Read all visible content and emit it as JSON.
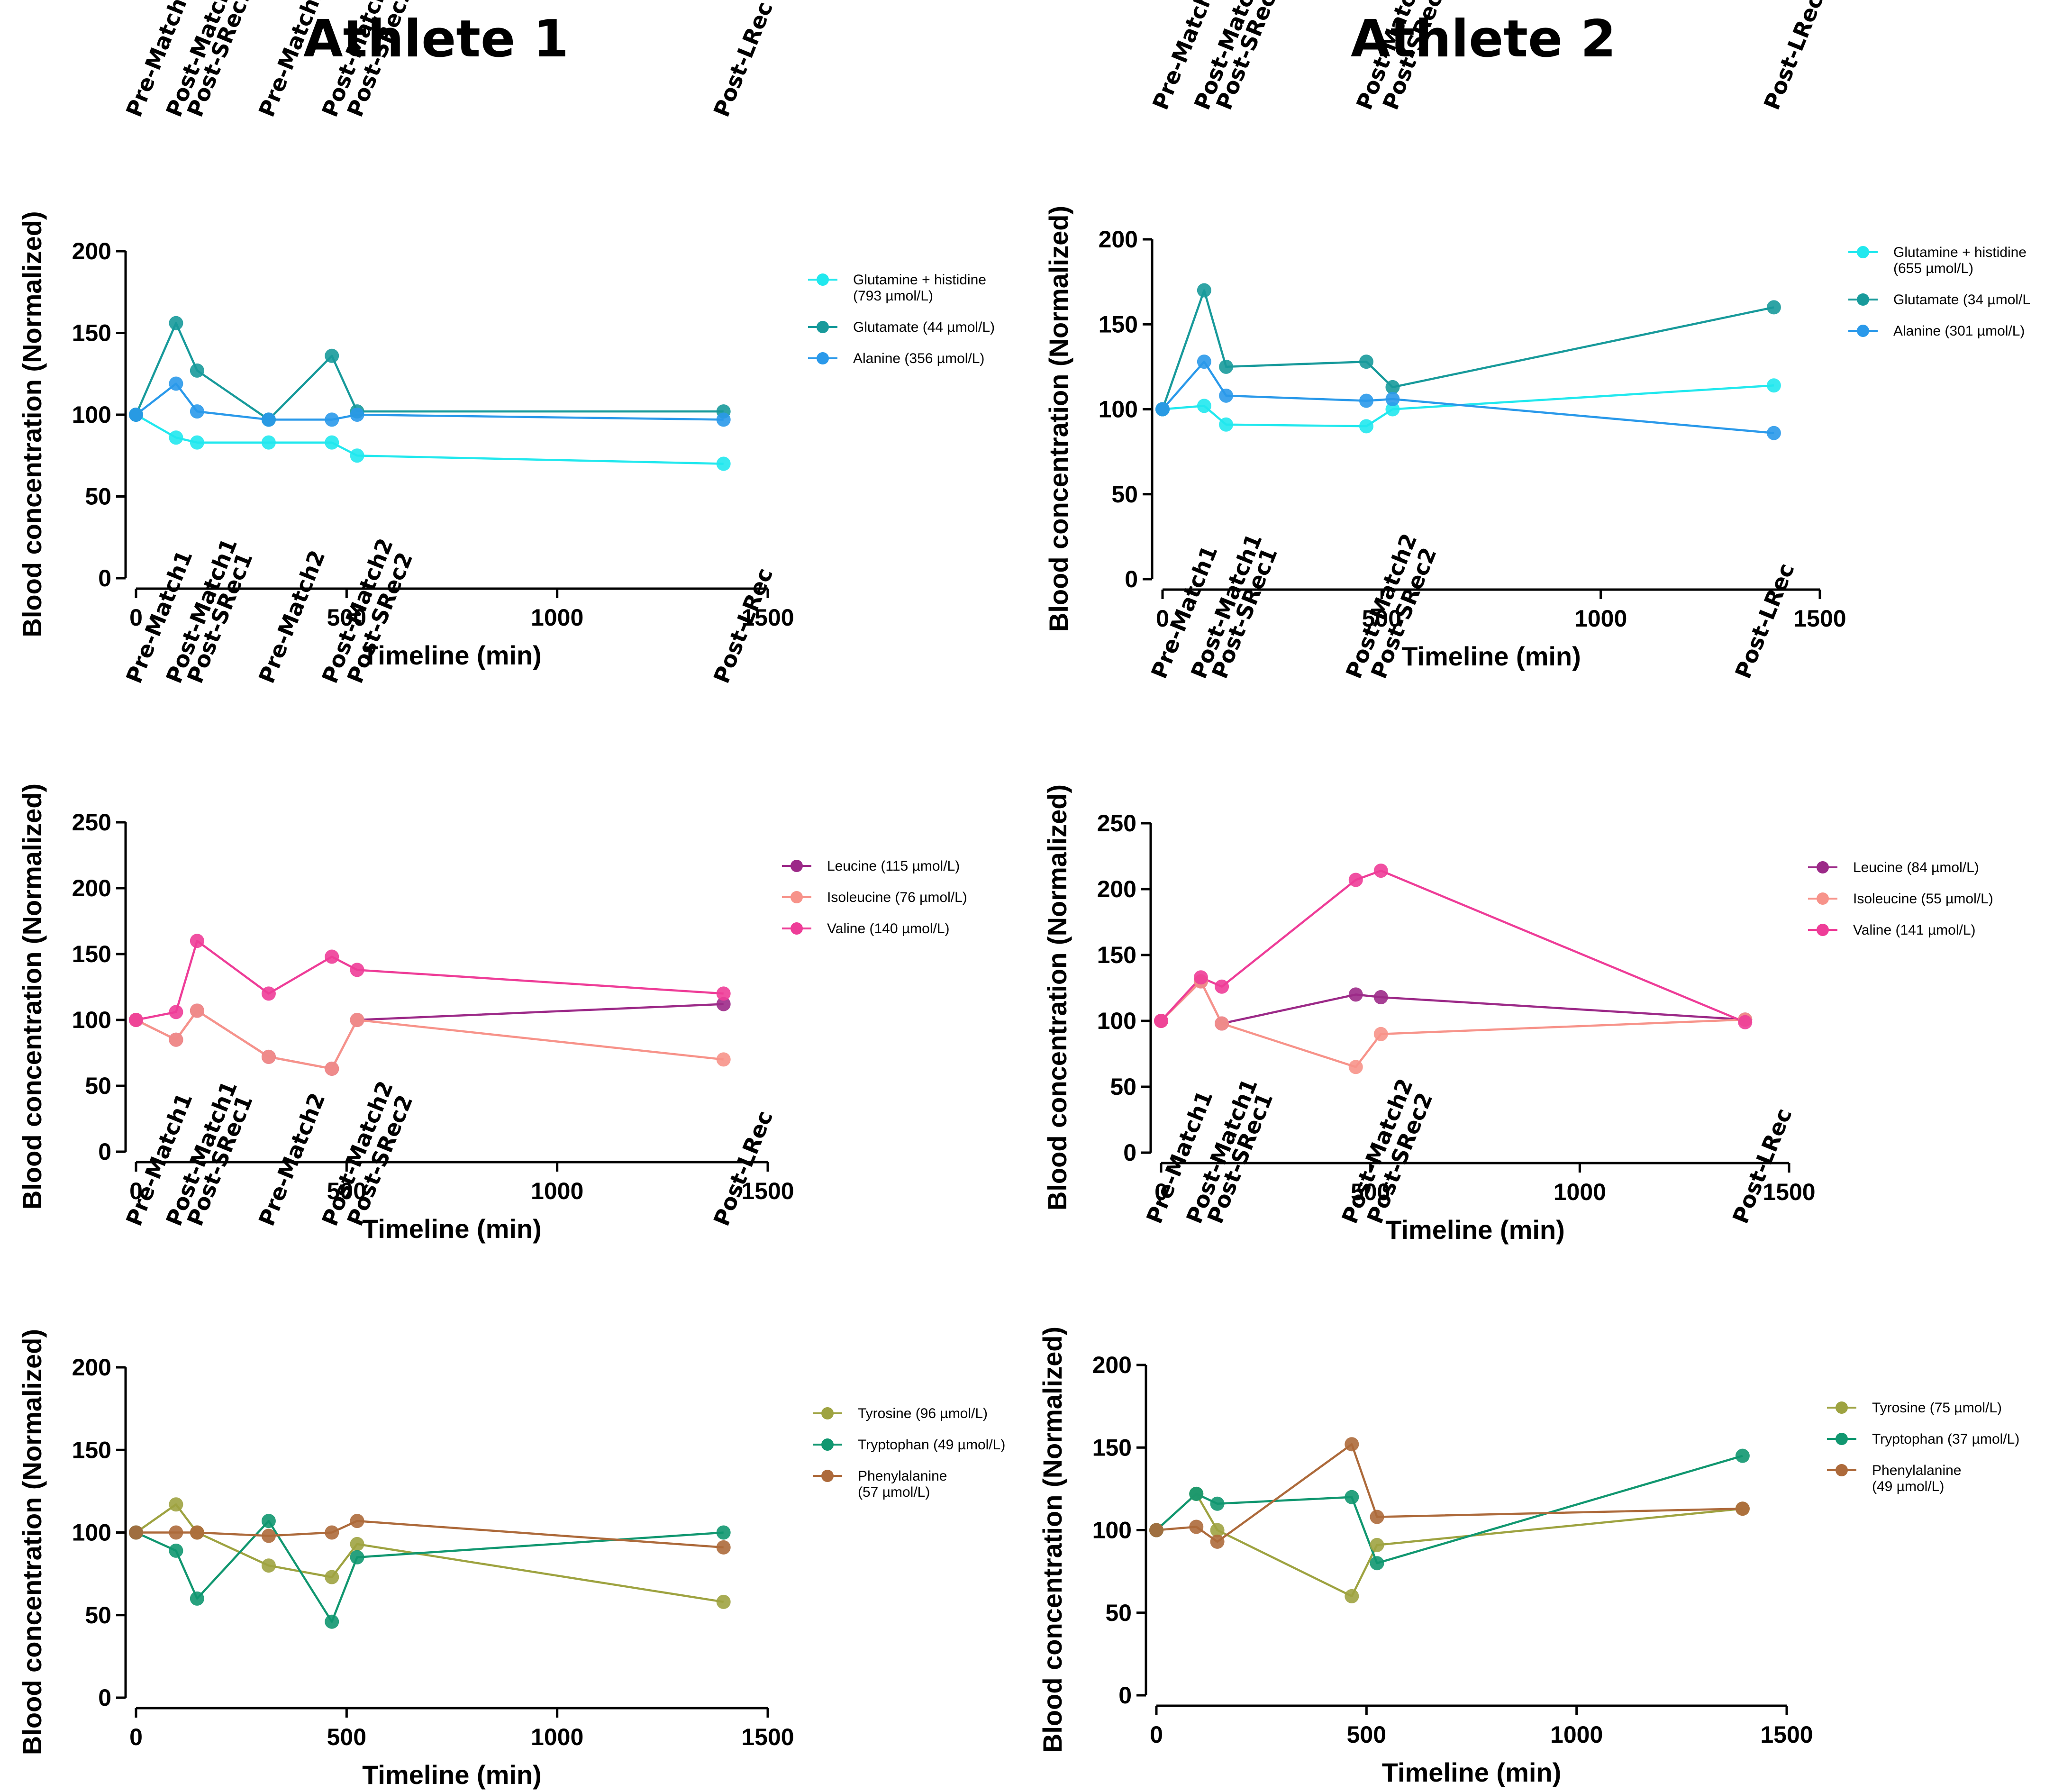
{
  "titles": {
    "athlete1": "Athlete 1",
    "athlete2": "Athlete 2"
  },
  "ylabel": "Blood concentration (Normalized)",
  "xlabel": "Timeline (min)",
  "colors": {
    "glutamine_histidine": "#21e8ee",
    "glutamate": "#189a9b",
    "alanine": "#2a99ea",
    "leucine": "#9c2a88",
    "isoleucine": "#f7938a",
    "valine": "#ee3d98",
    "tyrosine": "#9ea341",
    "tryptophan": "#119770",
    "phenylalanine": "#ad6a3b",
    "axis": "#000000"
  },
  "chart_data": [
    {
      "id": "a1-c1",
      "type": "line",
      "athlete": "Athlete 1",
      "xlabel": "Timeline (min)",
      "ylabel": "Blood concentration (Normalized)",
      "xlim": [
        0,
        1500
      ],
      "ylim": [
        0,
        200
      ],
      "xticks": [
        0,
        500,
        1000,
        1500
      ],
      "yticks": [
        0,
        50,
        100,
        150,
        200
      ],
      "timepoints": [
        {
          "label": "Pre-Match1",
          "x": 0
        },
        {
          "label": "Post-Match1",
          "x": 95
        },
        {
          "label": "Post-SRec1",
          "x": 145
        },
        {
          "label": "Pre-Match2",
          "x": 315
        },
        {
          "label": "Post-Match2",
          "x": 465
        },
        {
          "label": "Post-SRec2",
          "x": 525
        },
        {
          "label": "Post-LRec",
          "x": 1395
        }
      ],
      "series": [
        {
          "name": "Glutamine + histidine (793 µmol/L)",
          "legend_lines": [
            "Glutamine + histidine",
            "(793 µmol/L)"
          ],
          "color_key": "glutamine_histidine",
          "x": [
            0,
            95,
            145,
            315,
            465,
            525,
            1395
          ],
          "y": [
            100,
            86,
            83,
            83,
            83,
            75,
            70
          ]
        },
        {
          "name": "Glutamate (44 µmol/L)",
          "legend_lines": [
            "Glutamate (44 µmol/L)"
          ],
          "color_key": "glutamate",
          "x": [
            0,
            95,
            145,
            315,
            465,
            525,
            1395
          ],
          "y": [
            100,
            156,
            127,
            97,
            136,
            102,
            102
          ]
        },
        {
          "name": "Alanine (356 µmol/L)",
          "legend_lines": [
            "Alanine (356 µmol/L)"
          ],
          "color_key": "alanine",
          "x": [
            0,
            95,
            145,
            315,
            465,
            525,
            1395
          ],
          "y": [
            100,
            119,
            102,
            97,
            97,
            100,
            97
          ]
        }
      ]
    },
    {
      "id": "a2-c1",
      "type": "line",
      "athlete": "Athlete 2",
      "xlabel": "Timeline (min)",
      "ylabel": "Blood concentration (Normalized)",
      "xlim": [
        0,
        1500
      ],
      "ylim": [
        0,
        200
      ],
      "xticks": [
        0,
        500,
        1000,
        1500
      ],
      "yticks": [
        0,
        50,
        100,
        150,
        200
      ],
      "timepoints": [
        {
          "label": "Pre-Match1",
          "x": 0
        },
        {
          "label": "Post-Match1",
          "x": 95
        },
        {
          "label": "Post-SRec1",
          "x": 145
        },
        {
          "label": "Post-Match2",
          "x": 465
        },
        {
          "label": "Post-SRec2",
          "x": 525
        },
        {
          "label": "Post-LRec",
          "x": 1395
        }
      ],
      "series": [
        {
          "name": "Glutamine + histidine (655 µmol/L)",
          "legend_lines": [
            "Glutamine + histidine",
            "(655 µmol/L)"
          ],
          "color_key": "glutamine_histidine",
          "x": [
            0,
            95,
            145,
            465,
            525,
            1395
          ],
          "y": [
            100,
            102,
            91,
            90,
            100,
            114
          ]
        },
        {
          "name": "Glutamate (34 µmol/L)",
          "legend_lines": [
            "Glutamate (34 µmol/L"
          ],
          "color_key": "glutamate",
          "x": [
            0,
            95,
            145,
            465,
            525,
            1395
          ],
          "y": [
            100,
            170,
            125,
            128,
            113,
            160
          ]
        },
        {
          "name": "Alanine (301 µmol/L)",
          "legend_lines": [
            "Alanine (301 µmol/L)"
          ],
          "color_key": "alanine",
          "x": [
            0,
            95,
            145,
            465,
            525,
            1395
          ],
          "y": [
            100,
            128,
            108,
            105,
            106,
            86
          ]
        }
      ]
    },
    {
      "id": "a1-c2",
      "type": "line",
      "athlete": "Athlete 1",
      "xlabel": "Timeline (min)",
      "ylabel": "Blood concentration (Normalized)",
      "xlim": [
        0,
        1500
      ],
      "ylim": [
        0,
        250
      ],
      "xticks": [
        0,
        500,
        1000,
        1500
      ],
      "yticks": [
        0,
        50,
        100,
        150,
        200,
        250
      ],
      "timepoints": [
        {
          "label": "Pre-Match1",
          "x": 0
        },
        {
          "label": "Post-Match1",
          "x": 95
        },
        {
          "label": "Post-SRec1",
          "x": 145
        },
        {
          "label": "Pre-Match2",
          "x": 315
        },
        {
          "label": "Post-Match2",
          "x": 465
        },
        {
          "label": "Post-SRec2",
          "x": 525
        },
        {
          "label": "Post-LRec",
          "x": 1395
        }
      ],
      "series": [
        {
          "name": "Leucine (115 µmol/L)",
          "legend_lines": [
            "Leucine (115 µmol/L)"
          ],
          "color_key": "leucine",
          "x": [
            0,
            95,
            145,
            315,
            465,
            525,
            1395
          ],
          "y": [
            100,
            85,
            107,
            72,
            63,
            100,
            112
          ]
        },
        {
          "name": "Isoleucine (76 µmol/L)",
          "legend_lines": [
            "Isoleucine (76 µmol/L)"
          ],
          "color_key": "isoleucine",
          "x": [
            0,
            95,
            145,
            315,
            465,
            525,
            1395
          ],
          "y": [
            100,
            85,
            107,
            72,
            63,
            100,
            70
          ]
        },
        {
          "name": "Valine (140 µmol/L)",
          "legend_lines": [
            "Valine (140 µmol/L)"
          ],
          "color_key": "valine",
          "x": [
            0,
            95,
            145,
            315,
            465,
            525,
            1395
          ],
          "y": [
            100,
            106,
            160,
            120,
            148,
            138,
            120
          ]
        }
      ]
    },
    {
      "id": "a2-c2",
      "type": "line",
      "athlete": "Athlete 2",
      "xlabel": "Timeline (min)",
      "ylabel": "Blood concentration (Normalized)",
      "xlim": [
        0,
        1500
      ],
      "ylim": [
        0,
        250
      ],
      "xticks": [
        0,
        500,
        1000,
        1500
      ],
      "yticks": [
        0,
        50,
        100,
        150,
        200,
        250
      ],
      "timepoints": [
        {
          "label": "Pre-Match1",
          "x": 0
        },
        {
          "label": "Post-Match1",
          "x": 95
        },
        {
          "label": "Post-SRec1",
          "x": 145
        },
        {
          "label": "Post-Match2",
          "x": 465
        },
        {
          "label": "Post-SRec2",
          "x": 525
        },
        {
          "label": "Post-LRec",
          "x": 1395
        }
      ],
      "series": [
        {
          "name": "Leucine (84 µmol/L)",
          "legend_lines": [
            "Leucine (84 µmol/L)"
          ],
          "color_key": "leucine",
          "x": [
            0,
            95,
            145,
            465,
            525,
            1395
          ],
          "y": [
            100,
            130,
            98,
            120,
            118,
            101
          ]
        },
        {
          "name": "Isoleucine (55 µmol/L)",
          "legend_lines": [
            "Isoleucine (55 µmol/L)"
          ],
          "color_key": "isoleucine",
          "x": [
            0,
            95,
            145,
            465,
            525,
            1395
          ],
          "y": [
            100,
            130,
            98,
            65,
            90,
            101
          ]
        },
        {
          "name": "Valine (141 µmol/L)",
          "legend_lines": [
            "Valine (141 µmol/L)"
          ],
          "color_key": "valine",
          "x": [
            0,
            95,
            145,
            465,
            525,
            1395
          ],
          "y": [
            100,
            133,
            126,
            207,
            214,
            99
          ]
        }
      ]
    },
    {
      "id": "a1-c3",
      "type": "line",
      "athlete": "Athlete 1",
      "xlabel": "Timeline (min)",
      "ylabel": "Blood concentration (Normalized)",
      "xlim": [
        0,
        1500
      ],
      "ylim": [
        0,
        200
      ],
      "xticks": [
        0,
        500,
        1000,
        1500
      ],
      "yticks": [
        0,
        50,
        100,
        150,
        200
      ],
      "timepoints": [
        {
          "label": "Pre-Match1",
          "x": 0
        },
        {
          "label": "Post-Match1",
          "x": 95
        },
        {
          "label": "Post-SRec1",
          "x": 145
        },
        {
          "label": "Pre-Match2",
          "x": 315
        },
        {
          "label": "Post-Match2",
          "x": 465
        },
        {
          "label": "Post-SRec2",
          "x": 525
        },
        {
          "label": "Post-LRec",
          "x": 1395
        }
      ],
      "series": [
        {
          "name": "Tyrosine (96 µmol/L)",
          "legend_lines": [
            "Tyrosine (96 µmol/L)"
          ],
          "color_key": "tyrosine",
          "x": [
            0,
            95,
            145,
            315,
            465,
            525,
            1395
          ],
          "y": [
            100,
            117,
            100,
            80,
            73,
            93,
            58
          ]
        },
        {
          "name": "Tryptophan (49 µmol/L)",
          "legend_lines": [
            "Tryptophan (49 µmol/L)"
          ],
          "color_key": "tryptophan",
          "x": [
            0,
            95,
            145,
            315,
            465,
            525,
            1395
          ],
          "y": [
            100,
            89,
            60,
            107,
            46,
            85,
            100
          ]
        },
        {
          "name": "Phenylalanine (57 µmol/L)",
          "legend_lines": [
            "Phenylalanine",
            "(57 µmol/L)"
          ],
          "color_key": "phenylalanine",
          "x": [
            0,
            95,
            145,
            315,
            465,
            525,
            1395
          ],
          "y": [
            100,
            100,
            100,
            98,
            100,
            107,
            91
          ]
        }
      ]
    },
    {
      "id": "a2-c3",
      "type": "line",
      "athlete": "Athlete 2",
      "xlabel": "Timeline (min)",
      "ylabel": "Blood concentration (Normalized)",
      "xlim": [
        0,
        1500
      ],
      "ylim": [
        0,
        200
      ],
      "xticks": [
        0,
        500,
        1000,
        1500
      ],
      "yticks": [
        0,
        50,
        100,
        150,
        200
      ],
      "timepoints": [
        {
          "label": "Pre-Match1",
          "x": 0
        },
        {
          "label": "Post-Match1",
          "x": 95
        },
        {
          "label": "Post-SRec1",
          "x": 145
        },
        {
          "label": "Post-Match2",
          "x": 465
        },
        {
          "label": "Post-SRec2",
          "x": 525
        },
        {
          "label": "Post-LRec",
          "x": 1395
        }
      ],
      "series": [
        {
          "name": "Tyrosine (75 µmol/L)",
          "legend_lines": [
            "Tyrosine (75 µmol/L)"
          ],
          "color_key": "tyrosine",
          "x": [
            0,
            95,
            145,
            465,
            525,
            1395
          ],
          "y": [
            100,
            122,
            100,
            60,
            91,
            113
          ]
        },
        {
          "name": "Tryptophan (37 µmol/L)",
          "legend_lines": [
            "Tryptophan (37 µmol/L)"
          ],
          "color_key": "tryptophan",
          "x": [
            0,
            95,
            145,
            465,
            525,
            1395
          ],
          "y": [
            100,
            122,
            116,
            120,
            80,
            145
          ]
        },
        {
          "name": "Phenylalanine (49 µmol/L)",
          "legend_lines": [
            "Phenylalanine",
            "(49 µmol/L)"
          ],
          "color_key": "phenylalanine",
          "x": [
            0,
            95,
            145,
            465,
            525,
            1395
          ],
          "y": [
            100,
            102,
            93,
            152,
            108,
            113
          ]
        }
      ]
    }
  ]
}
